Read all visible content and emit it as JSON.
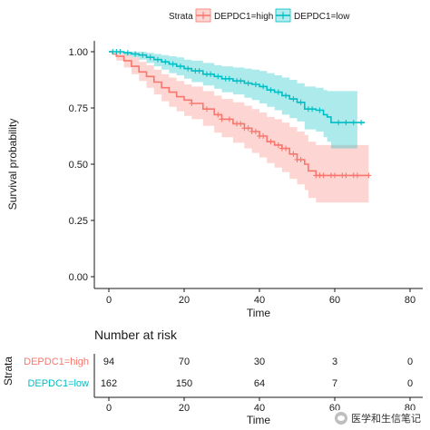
{
  "chart_data": {
    "type": "line",
    "legend": {
      "title": "Strata",
      "position": "top",
      "entries": [
        "DEPDC1=high",
        "DEPDC1=low"
      ]
    },
    "xlabel": "Time",
    "ylabel": "Survival probability",
    "xlim": [
      0,
      80
    ],
    "ylim": [
      0,
      1
    ],
    "xticks": [
      "0",
      "20",
      "40",
      "60",
      "80"
    ],
    "yticks": [
      "0.00",
      "0.25",
      "0.50",
      "0.75",
      "1.00"
    ],
    "grid": false,
    "series": [
      {
        "name": "DEPDC1=high",
        "color": "#F8766D",
        "band_color": "#F8766D",
        "points": [
          [
            0,
            1.0
          ],
          [
            1,
            0.99
          ],
          [
            2,
            0.98
          ],
          [
            4,
            0.96
          ],
          [
            6,
            0.935
          ],
          [
            8,
            0.91
          ],
          [
            10,
            0.89
          ],
          [
            12,
            0.865
          ],
          [
            14,
            0.84
          ],
          [
            16,
            0.82
          ],
          [
            18,
            0.8
          ],
          [
            20,
            0.785
          ],
          [
            22,
            0.77
          ],
          [
            25,
            0.745
          ],
          [
            28,
            0.72
          ],
          [
            30,
            0.7
          ],
          [
            33,
            0.68
          ],
          [
            36,
            0.66
          ],
          [
            38,
            0.645
          ],
          [
            40,
            0.625
          ],
          [
            42,
            0.6
          ],
          [
            44,
            0.585
          ],
          [
            46,
            0.57
          ],
          [
            48,
            0.545
          ],
          [
            50,
            0.52
          ],
          [
            52,
            0.5
          ],
          [
            53,
            0.47
          ],
          [
            55,
            0.45
          ],
          [
            60,
            0.45
          ],
          [
            65,
            0.45
          ],
          [
            69,
            0.45
          ]
        ],
        "lower": [
          [
            0,
            1.0
          ],
          [
            2,
            0.96
          ],
          [
            4,
            0.93
          ],
          [
            6,
            0.9
          ],
          [
            8,
            0.87
          ],
          [
            10,
            0.84
          ],
          [
            12,
            0.81
          ],
          [
            14,
            0.78
          ],
          [
            16,
            0.755
          ],
          [
            18,
            0.735
          ],
          [
            20,
            0.715
          ],
          [
            22,
            0.7
          ],
          [
            25,
            0.67
          ],
          [
            28,
            0.64
          ],
          [
            30,
            0.62
          ],
          [
            33,
            0.595
          ],
          [
            36,
            0.57
          ],
          [
            38,
            0.55
          ],
          [
            40,
            0.53
          ],
          [
            42,
            0.505
          ],
          [
            44,
            0.485
          ],
          [
            46,
            0.465
          ],
          [
            48,
            0.435
          ],
          [
            50,
            0.41
          ],
          [
            52,
            0.385
          ],
          [
            53,
            0.35
          ],
          [
            55,
            0.33
          ],
          [
            69,
            0.33
          ]
        ],
        "upper": [
          [
            0,
            1.0
          ],
          [
            2,
            1.0
          ],
          [
            4,
            0.99
          ],
          [
            6,
            0.975
          ],
          [
            8,
            0.955
          ],
          [
            10,
            0.94
          ],
          [
            12,
            0.92
          ],
          [
            14,
            0.9
          ],
          [
            16,
            0.885
          ],
          [
            18,
            0.87
          ],
          [
            20,
            0.855
          ],
          [
            22,
            0.845
          ],
          [
            25,
            0.825
          ],
          [
            28,
            0.805
          ],
          [
            30,
            0.79
          ],
          [
            33,
            0.775
          ],
          [
            36,
            0.76
          ],
          [
            38,
            0.745
          ],
          [
            40,
            0.73
          ],
          [
            42,
            0.71
          ],
          [
            44,
            0.7
          ],
          [
            46,
            0.685
          ],
          [
            48,
            0.665
          ],
          [
            50,
            0.645
          ],
          [
            52,
            0.63
          ],
          [
            53,
            0.6
          ],
          [
            55,
            0.585
          ],
          [
            60,
            0.585
          ],
          [
            69,
            0.585
          ]
        ],
        "censor_x": [
          22,
          26,
          29,
          30,
          32,
          34,
          35,
          36,
          37,
          38,
          39,
          40,
          41,
          43,
          45,
          46,
          47,
          49,
          50,
          51,
          55,
          56,
          57,
          59,
          60,
          62,
          63,
          65,
          66,
          69
        ]
      },
      {
        "name": "DEPDC1=low",
        "color": "#00BFC4",
        "band_color": "#00BFC4",
        "points": [
          [
            0,
            1.0
          ],
          [
            4,
            0.995
          ],
          [
            6,
            0.99
          ],
          [
            8,
            0.985
          ],
          [
            10,
            0.975
          ],
          [
            12,
            0.965
          ],
          [
            14,
            0.955
          ],
          [
            16,
            0.945
          ],
          [
            18,
            0.935
          ],
          [
            20,
            0.925
          ],
          [
            22,
            0.915
          ],
          [
            25,
            0.9
          ],
          [
            28,
            0.89
          ],
          [
            30,
            0.88
          ],
          [
            33,
            0.87
          ],
          [
            36,
            0.86
          ],
          [
            38,
            0.855
          ],
          [
            40,
            0.845
          ],
          [
            42,
            0.83
          ],
          [
            44,
            0.82
          ],
          [
            46,
            0.805
          ],
          [
            48,
            0.79
          ],
          [
            50,
            0.775
          ],
          [
            52,
            0.745
          ],
          [
            55,
            0.74
          ],
          [
            57,
            0.72
          ],
          [
            58,
            0.71
          ],
          [
            59,
            0.685
          ],
          [
            60,
            0.685
          ],
          [
            68,
            0.685
          ]
        ],
        "lower": [
          [
            0,
            1.0
          ],
          [
            4,
            0.985
          ],
          [
            6,
            0.975
          ],
          [
            8,
            0.965
          ],
          [
            10,
            0.95
          ],
          [
            12,
            0.935
          ],
          [
            14,
            0.92
          ],
          [
            16,
            0.905
          ],
          [
            18,
            0.895
          ],
          [
            20,
            0.88
          ],
          [
            22,
            0.865
          ],
          [
            25,
            0.85
          ],
          [
            28,
            0.835
          ],
          [
            30,
            0.82
          ],
          [
            33,
            0.81
          ],
          [
            36,
            0.795
          ],
          [
            38,
            0.785
          ],
          [
            40,
            0.77
          ],
          [
            42,
            0.755
          ],
          [
            44,
            0.74
          ],
          [
            46,
            0.72
          ],
          [
            48,
            0.705
          ],
          [
            50,
            0.69
          ],
          [
            52,
            0.655
          ],
          [
            55,
            0.645
          ],
          [
            57,
            0.62
          ],
          [
            58,
            0.6
          ],
          [
            59,
            0.57
          ],
          [
            60,
            0.57
          ],
          [
            66,
            0.57
          ]
        ],
        "upper": [
          [
            0,
            1.0
          ],
          [
            4,
            1.0
          ],
          [
            6,
            1.0
          ],
          [
            8,
            1.0
          ],
          [
            10,
            0.995
          ],
          [
            12,
            0.99
          ],
          [
            14,
            0.985
          ],
          [
            16,
            0.98
          ],
          [
            18,
            0.975
          ],
          [
            20,
            0.965
          ],
          [
            22,
            0.96
          ],
          [
            25,
            0.95
          ],
          [
            28,
            0.94
          ],
          [
            30,
            0.935
          ],
          [
            33,
            0.93
          ],
          [
            36,
            0.925
          ],
          [
            38,
            0.92
          ],
          [
            40,
            0.915
          ],
          [
            42,
            0.905
          ],
          [
            44,
            0.895
          ],
          [
            46,
            0.885
          ],
          [
            48,
            0.875
          ],
          [
            50,
            0.86
          ],
          [
            52,
            0.845
          ],
          [
            55,
            0.84
          ],
          [
            57,
            0.83
          ],
          [
            58,
            0.825
          ],
          [
            59,
            0.825
          ],
          [
            66,
            0.825
          ]
        ],
        "censor_x": [
          1,
          2,
          3,
          5,
          7,
          9,
          11,
          13,
          15,
          17,
          19,
          21,
          23,
          24,
          26,
          27,
          29,
          31,
          32,
          34,
          35,
          37,
          39,
          41,
          43,
          45,
          47,
          49,
          51,
          53,
          54,
          56,
          61,
          63,
          65,
          67
        ]
      }
    ]
  },
  "risk_table": {
    "title": "Number at risk",
    "ylabel": "Strata",
    "xlabel": "Time",
    "times": [
      "0",
      "20",
      "40",
      "60",
      "80"
    ],
    "rows": [
      {
        "label": "DEPDC1=high",
        "color": "#F8766D",
        "values": [
          "94",
          "70",
          "30",
          "3",
          "0"
        ]
      },
      {
        "label": "DEPDC1=low",
        "color": "#00BFC4",
        "values": [
          "162",
          "150",
          "64",
          "7",
          "0"
        ]
      }
    ]
  },
  "watermark": {
    "text": "医学和生信笔记"
  }
}
